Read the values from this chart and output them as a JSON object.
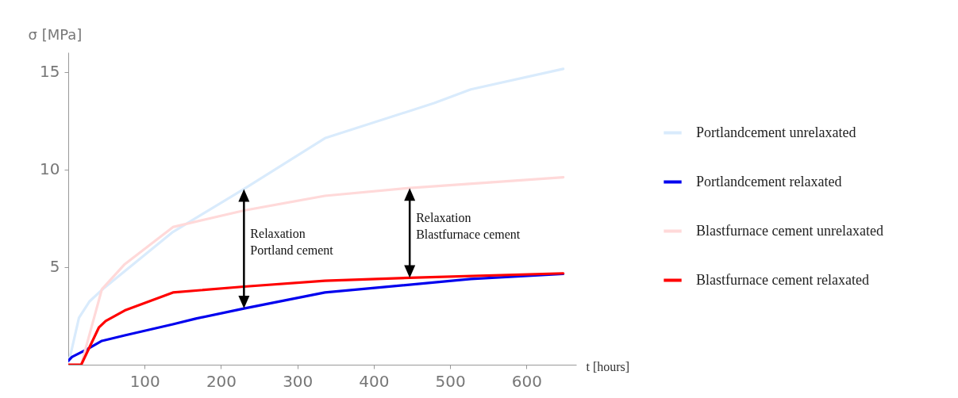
{
  "chart_data": {
    "type": "line",
    "xlabel": "t [hours]",
    "ylabel": "σ [MPa]",
    "xlim": [
      0,
      665
    ],
    "ylim": [
      0,
      16
    ],
    "xticks": [
      100,
      200,
      300,
      400,
      500,
      600
    ],
    "yticks": [
      5,
      10,
      15
    ],
    "legend": "right",
    "grid": false,
    "marker": "none",
    "line_style": "solid",
    "series": [
      {
        "name": "Portlandcement unrelaxated",
        "color": "#d9ebfc",
        "x": [
          0,
          14,
          28,
          46,
          137,
          230,
          336,
          479,
          527,
          648
        ],
        "values": [
          0,
          2.4,
          3.25,
          3.9,
          6.8,
          9.0,
          11.6,
          13.4,
          14.1,
          15.15
        ]
      },
      {
        "name": "Portlandcement relaxated",
        "color": "#0000ee",
        "x": [
          0,
          5,
          25,
          44,
          74,
          137,
          167,
          230,
          336,
          527,
          648
        ],
        "values": [
          0.2,
          0.4,
          0.8,
          1.22,
          1.5,
          2.07,
          2.36,
          2.88,
          3.7,
          4.39,
          4.65
        ]
      },
      {
        "name": "Blastfurnace cement unrelaxated",
        "color": "#ffd9d9",
        "x": [
          0,
          17,
          44,
          74,
          137,
          230,
          336,
          447,
          648
        ],
        "values": [
          0,
          0,
          3.86,
          5.15,
          7.05,
          7.9,
          8.65,
          9.05,
          9.6
        ]
      },
      {
        "name": "Blastfurnace cement relaxated",
        "color": "#ff0000",
        "x": [
          0,
          17,
          40,
          49,
          74,
          137,
          230,
          336,
          447,
          648
        ],
        "values": [
          0,
          0,
          1.9,
          2.24,
          2.78,
          3.7,
          4.0,
          4.3,
          4.45,
          4.68
        ]
      }
    ],
    "annotations": [
      {
        "text": "Relaxation\nPortland cement",
        "x": 230,
        "y": 9.0
      },
      {
        "text": "Relaxation\nBlastfurnace cement",
        "x": 447,
        "y": 9.05
      }
    ]
  }
}
